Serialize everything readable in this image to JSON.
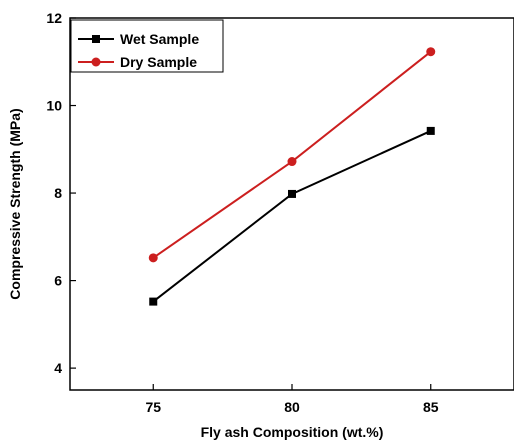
{
  "chart_data": {
    "type": "line",
    "xlabel": "Fly ash Composition (wt.%)",
    "ylabel": "Compressive Strength (MPa)",
    "x": [
      75,
      80,
      85
    ],
    "x_ticks": [
      "75",
      "80",
      "85"
    ],
    "y_ticks": [
      "4",
      "6",
      "8",
      "10",
      "12"
    ],
    "y_tick_values": [
      4,
      6,
      8,
      10,
      12
    ],
    "xlim": [
      72,
      88
    ],
    "ylim": [
      3.5,
      12
    ],
    "legend_position": "top-left",
    "grid": false,
    "series": [
      {
        "name": "Wet Sample",
        "values": [
          5.52,
          7.98,
          9.42
        ],
        "color": "#000000",
        "marker": "square"
      },
      {
        "name": "Dry Sample",
        "values": [
          6.52,
          8.72,
          11.23
        ],
        "color": "#cc1f1f",
        "marker": "circle"
      }
    ]
  }
}
